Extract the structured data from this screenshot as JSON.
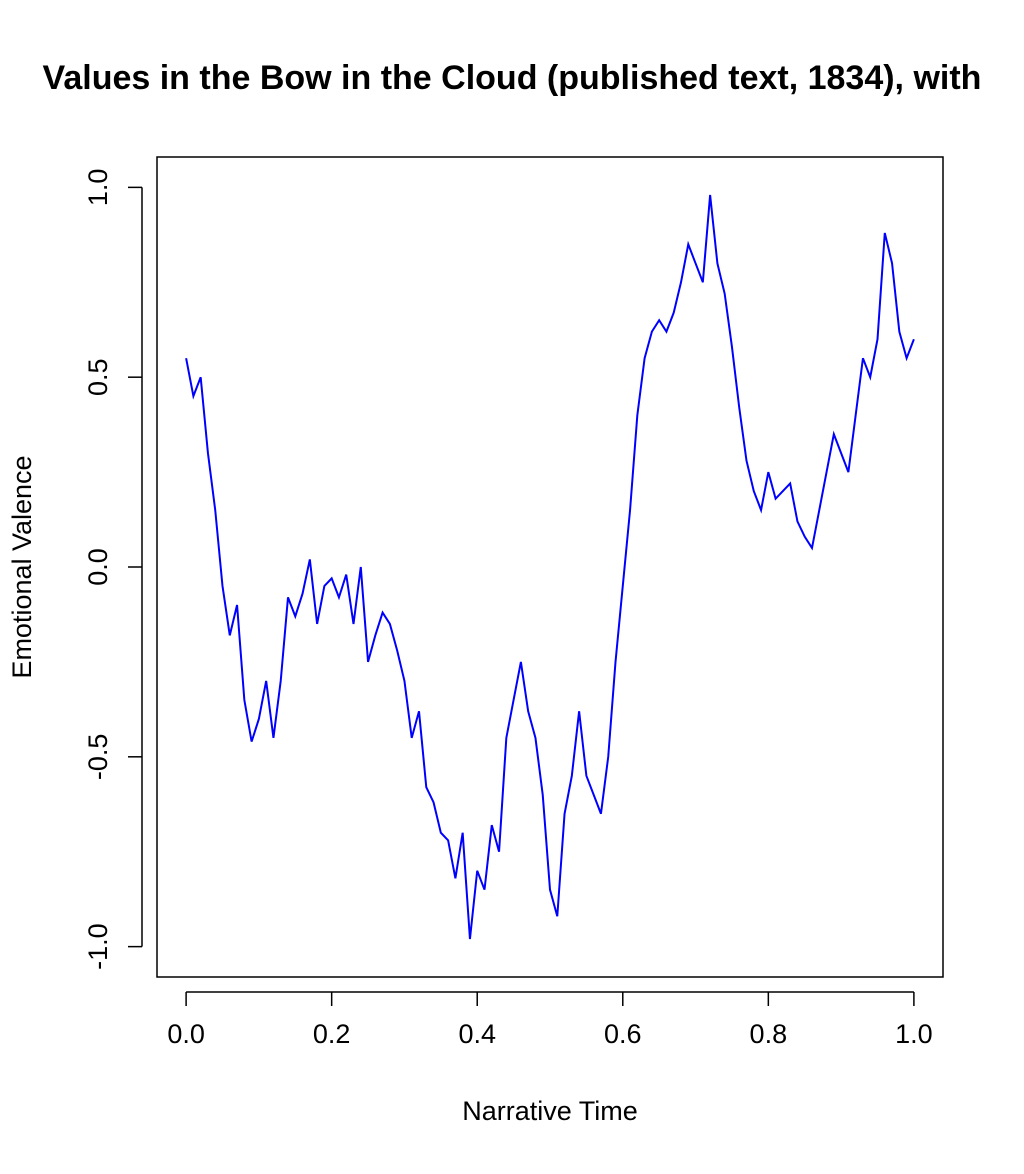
{
  "chart_data": {
    "type": "line",
    "title": "Values in the Bow in the Cloud (published text, 1834), with",
    "xlabel": "Narrative Time",
    "ylabel": "Emotional Valence",
    "color": "#0000ff",
    "x": [
      0,
      0.01,
      0.02,
      0.03,
      0.04,
      0.05,
      0.06,
      0.07,
      0.08,
      0.09,
      0.1,
      0.11,
      0.12,
      0.13,
      0.14,
      0.15,
      0.16,
      0.17,
      0.18,
      0.19,
      0.2,
      0.21,
      0.22,
      0.23,
      0.24,
      0.25,
      0.26,
      0.27,
      0.28,
      0.29,
      0.3,
      0.31,
      0.32,
      0.33,
      0.34,
      0.35,
      0.36,
      0.37,
      0.38,
      0.39,
      0.4,
      0.41,
      0.42,
      0.43,
      0.44,
      0.45,
      0.46,
      0.47,
      0.48,
      0.49,
      0.5,
      0.51,
      0.52,
      0.53,
      0.54,
      0.55,
      0.56,
      0.57,
      0.58,
      0.59,
      0.6,
      0.61,
      0.62,
      0.63,
      0.64,
      0.65,
      0.66,
      0.67,
      0.68,
      0.69,
      0.7,
      0.71,
      0.72,
      0.73,
      0.74,
      0.75,
      0.76,
      0.77,
      0.78,
      0.79,
      0.8,
      0.81,
      0.82,
      0.83,
      0.84,
      0.85,
      0.86,
      0.87,
      0.88,
      0.89,
      0.9,
      0.91,
      0.92,
      0.93,
      0.94,
      0.95,
      0.96,
      0.97,
      0.98,
      0.99,
      1
    ],
    "values": [
      0.55,
      0.45,
      0.5,
      0.3,
      0.15,
      -0.05,
      -0.18,
      -0.1,
      -0.35,
      -0.46,
      -0.4,
      -0.3,
      -0.45,
      -0.3,
      -0.08,
      -0.13,
      -0.07,
      0.02,
      -0.15,
      -0.05,
      -0.03,
      -0.08,
      -0.02,
      -0.15,
      0,
      -0.25,
      -0.18,
      -0.12,
      -0.15,
      -0.22,
      -0.3,
      -0.45,
      -0.38,
      -0.58,
      -0.62,
      -0.7,
      -0.72,
      -0.82,
      -0.7,
      -0.98,
      -0.8,
      -0.85,
      -0.68,
      -0.75,
      -0.45,
      -0.35,
      -0.25,
      -0.38,
      -0.45,
      -0.6,
      -0.85,
      -0.92,
      -0.65,
      -0.55,
      -0.38,
      -0.55,
      -0.6,
      -0.65,
      -0.5,
      -0.25,
      -0.05,
      0.15,
      0.4,
      0.55,
      0.62,
      0.65,
      0.62,
      0.67,
      0.75,
      0.85,
      0.8,
      0.75,
      0.98,
      0.8,
      0.72,
      0.58,
      0.42,
      0.28,
      0.2,
      0.15,
      0.25,
      0.18,
      0.2,
      0.22,
      0.12,
      0.08,
      0.05,
      0.15,
      0.25,
      0.35,
      0.3,
      0.25,
      0.4,
      0.55,
      0.5,
      0.6,
      0.88,
      0.8,
      0.62,
      0.55,
      0.6
    ],
    "xlim": [
      -0.04,
      1.04
    ],
    "ylim": [
      -1.08,
      1.08
    ],
    "xticks": [
      {
        "value": 0,
        "label": "0.0"
      },
      0.2,
      0.4,
      0.6,
      0.8,
      {
        "value": 1,
        "label": "1.0"
      }
    ],
    "yticks": [
      {
        "value": -1,
        "label": "-1.0"
      },
      -0.5,
      {
        "value": 0,
        "label": "0.0"
      },
      0.5,
      {
        "value": 1,
        "label": "1.0"
      }
    ]
  }
}
